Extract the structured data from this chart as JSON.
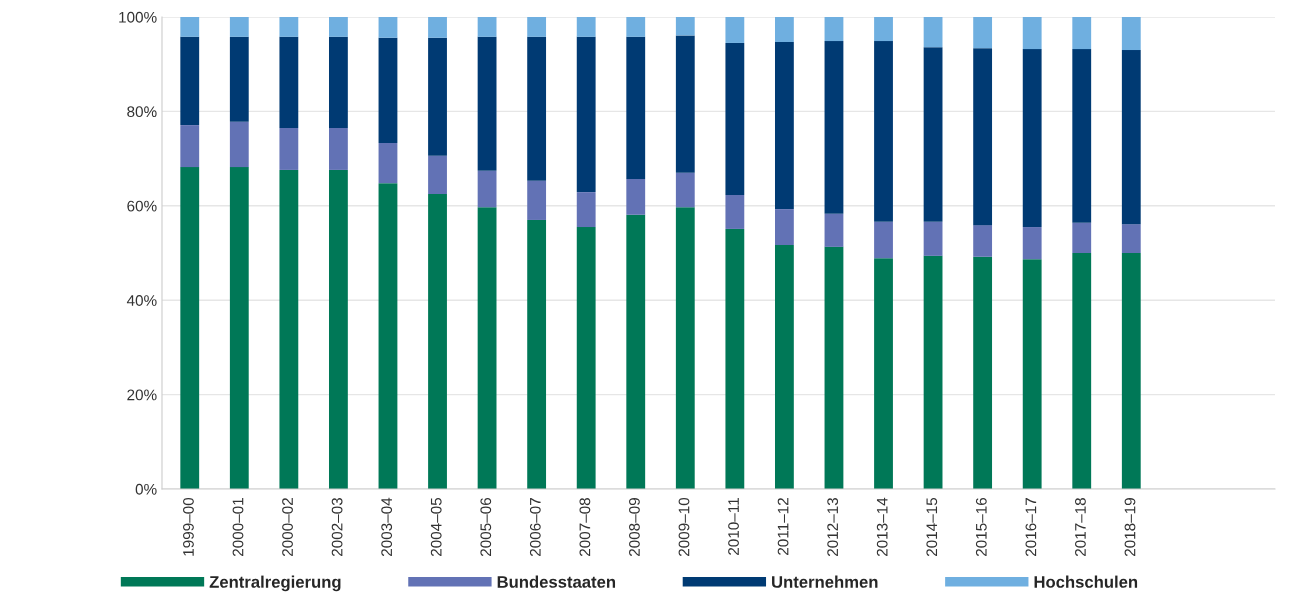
{
  "chart_data": {
    "type": "bar",
    "stacked": true,
    "categories": [
      "1999–00",
      "2000–01",
      "2000–02",
      "2002–03",
      "2003–04",
      "2004–05",
      "2005–06",
      "2006–07",
      "2007–08",
      "2008–09",
      "2009–10",
      "2010–11",
      "2011–12",
      "2012–13",
      "2013–14",
      "2014–15",
      "2015–16",
      "2016–17",
      "2017–18",
      "2018–19"
    ],
    "series": [
      {
        "name": "Zentralregierung",
        "color": "#007857",
        "values": [
          68.2,
          68.2,
          67.6,
          67.6,
          64.8,
          62.5,
          59.7,
          57.0,
          55.5,
          58.1,
          59.7,
          55.1,
          51.7,
          51.3,
          48.9,
          49.4,
          49.2,
          48.7,
          50.0,
          50.0
        ]
      },
      {
        "name": "Bundesstaaten",
        "color": "#6272b5",
        "values": [
          8.9,
          9.6,
          8.9,
          8.9,
          8.5,
          8.1,
          7.7,
          8.3,
          7.4,
          7.6,
          7.3,
          7.2,
          7.6,
          7.0,
          7.7,
          7.2,
          6.7,
          6.8,
          6.4,
          6.1
        ]
      },
      {
        "name": "Unternehmen",
        "color": "#003a73",
        "values": [
          18.7,
          18.0,
          19.3,
          19.3,
          22.3,
          25.0,
          28.4,
          30.5,
          32.9,
          30.1,
          29.1,
          32.2,
          35.4,
          36.6,
          38.3,
          37.0,
          37.5,
          37.7,
          36.8,
          36.9
        ]
      },
      {
        "name": "Hochschulen",
        "color": "#6fafe0",
        "values": [
          4.2,
          4.2,
          4.2,
          4.2,
          4.4,
          4.4,
          4.2,
          4.2,
          4.2,
          4.2,
          3.9,
          5.5,
          5.3,
          5.1,
          5.1,
          6.4,
          6.6,
          6.8,
          6.8,
          7.0
        ]
      }
    ],
    "ylim": [
      0,
      100
    ],
    "yticks": [
      {
        "value": 0,
        "label": "0%"
      },
      {
        "value": 20,
        "label": "20%"
      },
      {
        "value": 40,
        "label": "40%"
      },
      {
        "value": 60,
        "label": "60%"
      },
      {
        "value": 80,
        "label": "80%"
      },
      {
        "value": 100,
        "label": "100%"
      }
    ],
    "grid": "y",
    "legend": "bottom"
  }
}
